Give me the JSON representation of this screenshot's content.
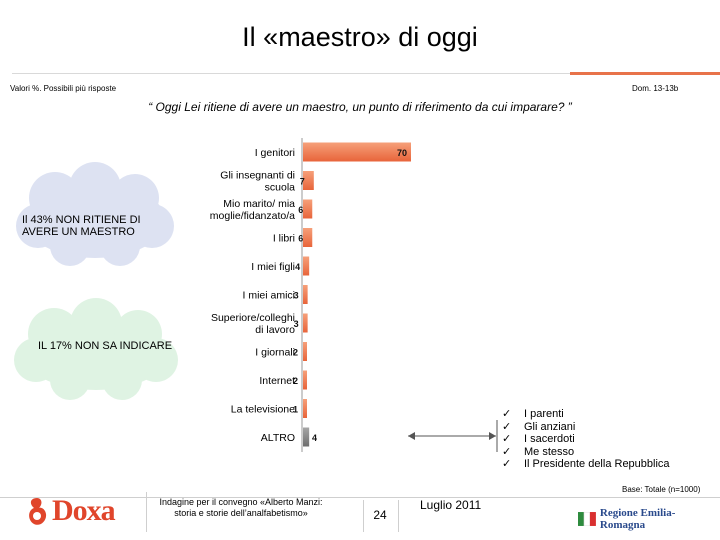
{
  "slide": {
    "title": "Il «maestro» di oggi",
    "note_left": "Valori %. Possibili più risposte",
    "note_right": "Dom. 13-13b",
    "question": "“ Oggi Lei ritiene di avere un maestro, un punto di riferimento da cui imparare? ”",
    "base": "Base: Totale (n=1000)"
  },
  "callouts": {
    "not_have": "Il 43% NON RITIENE DI AVERE UN MAESTRO",
    "dont_know": "IL 17% NON SA INDICARE"
  },
  "altro_items": [
    "I parenti",
    "Gli anziani",
    "I sacerdoti",
    "Me stesso",
    "Il Presidente della Repubblica"
  ],
  "footer": {
    "logo": "Doxa",
    "survey": "Indagine per il convegno «Alberto Manzi: storia e storie dell’analfabetismo»",
    "page": "24",
    "date": "Luglio 2011",
    "region_logo": "Regione Emilia-Romagna"
  },
  "colors": {
    "bar": "#f28356",
    "bar_dark": "#e36436",
    "altro_bar": "#8c8c8c",
    "accent": "#e8734a"
  },
  "chart_data": {
    "type": "bar",
    "orientation": "horizontal",
    "title": "“ Oggi Lei ritiene di avere un maestro, un punto di riferimento da cui imparare? ”",
    "xlabel": "",
    "ylabel": "",
    "unit": "%",
    "xlim": [
      0,
      70
    ],
    "categories": [
      [
        "I genitori"
      ],
      [
        "Gli insegnanti di",
        "scuola"
      ],
      [
        "Mio marito/ mia",
        "moglie/fidanzato/a"
      ],
      [
        "I libri"
      ],
      [
        "I miei figli"
      ],
      [
        "I miei amici"
      ],
      [
        "Superiore/colleghi",
        "di lavoro"
      ],
      [
        "I giornali"
      ],
      [
        "Internet"
      ],
      [
        "La televisione"
      ],
      [
        "ALTRO"
      ]
    ],
    "values": [
      70,
      7,
      6,
      6,
      4,
      3,
      3,
      2,
      2,
      1,
      4
    ]
  }
}
